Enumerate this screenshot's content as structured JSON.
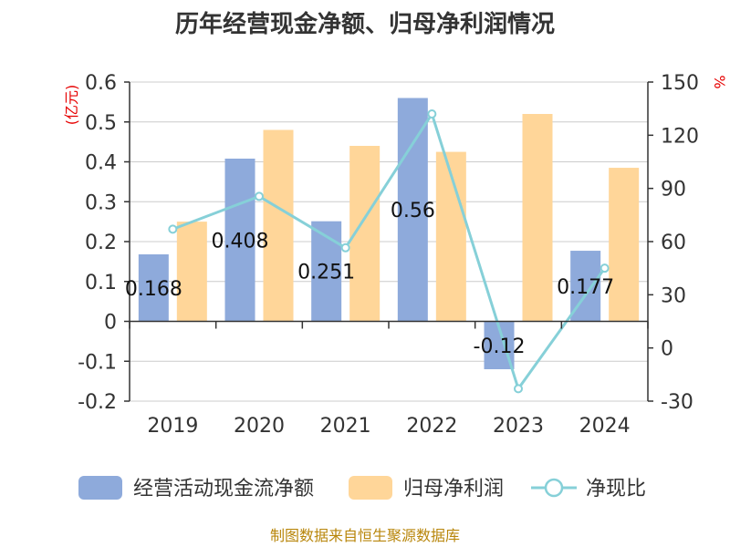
{
  "title": "历年经营现金净额、归母净利润情况",
  "source": "制图数据来自恒生聚源数据库",
  "chart_data": {
    "type": "bar",
    "categories": [
      "2019",
      "2020",
      "2021",
      "2022",
      "2023",
      "2024"
    ],
    "series": [
      {
        "name": "经营活动现金流净额",
        "kind": "bar",
        "axis": "left",
        "values": [
          0.168,
          0.408,
          0.251,
          0.56,
          -0.12,
          0.177
        ],
        "labels": [
          "0.168",
          "0.408",
          "0.251",
          "0.56",
          "-0.12",
          "0.177"
        ],
        "color": "#8eaadb"
      },
      {
        "name": "归母净利润",
        "kind": "bar",
        "axis": "left",
        "values": [
          0.25,
          0.48,
          0.44,
          0.425,
          0.52,
          0.385
        ],
        "color": "#ffd699"
      },
      {
        "name": "净现比",
        "kind": "line",
        "axis": "right",
        "values": [
          67,
          85.5,
          56.5,
          132,
          -23,
          45
        ],
        "color": "#86d0d8"
      }
    ],
    "y_left": {
      "label": "(亿元)",
      "ylim": [
        -0.2,
        0.6
      ],
      "ticks": [
        "0.6",
        "0.5",
        "0.4",
        "0.3",
        "0.2",
        "0.1",
        "0",
        "-0.1",
        "-0.2"
      ]
    },
    "y_right": {
      "label": "%",
      "ylim": [
        -30,
        150
      ],
      "ticks": [
        "150",
        "120",
        "90",
        "60",
        "30",
        "0",
        "-30"
      ]
    },
    "grid": true,
    "legend_position": "bottom"
  }
}
